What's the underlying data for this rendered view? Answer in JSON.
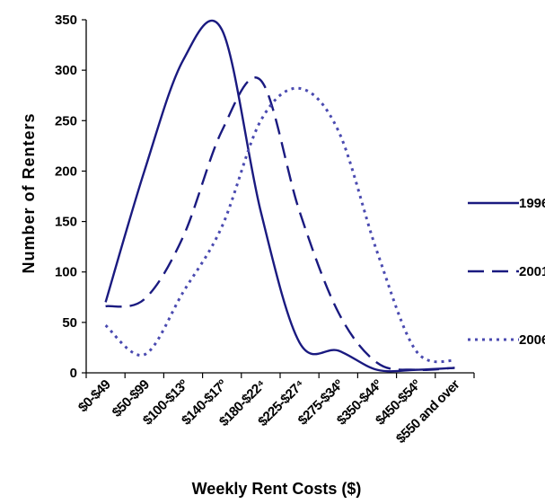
{
  "chart_data": {
    "type": "line",
    "title": "",
    "xlabel": "Weekly Rent Costs ($)",
    "ylabel": "Number of Renters",
    "ylim": [
      0,
      350
    ],
    "yticks": [
      0,
      50,
      100,
      150,
      200,
      250,
      300,
      350
    ],
    "grid": false,
    "legend_position": "right",
    "categories": [
      "$0-$49",
      "$50-$99",
      "$100-$139",
      "$140-$179",
      "$180-$224",
      "$225-$274",
      "$275-$349",
      "$350-$449",
      "$450-$549",
      "$550 and over"
    ],
    "categories_display": [
      "$0-$49",
      "$50-$99",
      "$100-$13º",
      "$140-$17º",
      "$180-$22⁴",
      "$225-$27⁴",
      "$275-$34º",
      "$350-$44º",
      "$450-$54º",
      "$550 and over"
    ],
    "series": [
      {
        "name": "1996",
        "style": "solid",
        "color": "#1a1a80",
        "values": [
          70,
          200,
          310,
          340,
          160,
          30,
          22,
          3,
          3,
          5
        ]
      },
      {
        "name": "2001",
        "style": "dashed",
        "color": "#1a1a80",
        "values": [
          66,
          73,
          135,
          240,
          290,
          160,
          60,
          10,
          3,
          5
        ]
      },
      {
        "name": "2006",
        "style": "dotted",
        "color": "#4a4ab0",
        "values": [
          47,
          18,
          80,
          145,
          250,
          282,
          240,
          120,
          22,
          12
        ]
      }
    ]
  }
}
